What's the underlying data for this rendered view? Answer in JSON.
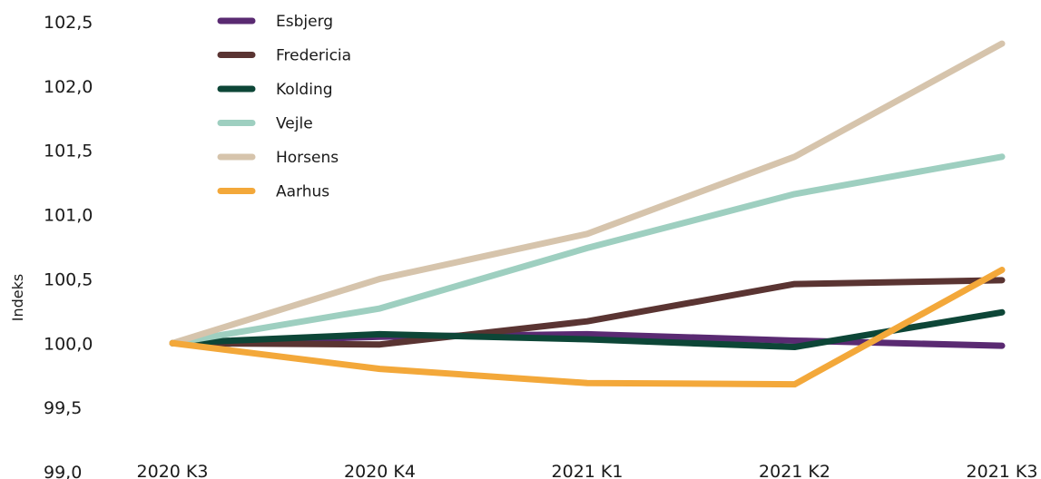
{
  "chart_data": {
    "type": "line",
    "title": "",
    "xlabel": "",
    "ylabel": "Indeks",
    "categories": [
      "2020 K3",
      "2020 K4",
      "2021 K1",
      "2021 K2",
      "2021 K3"
    ],
    "y_ticks": [
      "99,0",
      "99,5",
      "100,0",
      "100,5",
      "101,0",
      "101,5",
      "102,0",
      "102,5"
    ],
    "ylim": [
      99.0,
      102.5
    ],
    "grid": false,
    "legend_position": "top-left",
    "series": [
      {
        "name": "Esbjerg",
        "color": "#5a2a72",
        "values": [
          100.0,
          100.05,
          100.07,
          100.02,
          99.98
        ]
      },
      {
        "name": "Fredericia",
        "color": "#5a3432",
        "values": [
          100.0,
          99.99,
          100.17,
          100.46,
          100.49
        ]
      },
      {
        "name": "Kolding",
        "color": "#0d4637",
        "values": [
          100.0,
          100.07,
          100.03,
          99.97,
          100.24
        ]
      },
      {
        "name": "Vejle",
        "color": "#9ecfc0",
        "values": [
          100.0,
          100.27,
          100.74,
          101.16,
          101.45
        ]
      },
      {
        "name": "Horsens",
        "color": "#d6c4ac",
        "values": [
          100.0,
          100.5,
          100.85,
          101.45,
          102.33
        ]
      },
      {
        "name": "Aarhus",
        "color": "#f3a83a",
        "values": [
          100.0,
          99.8,
          99.69,
          99.68,
          100.57
        ]
      }
    ]
  }
}
